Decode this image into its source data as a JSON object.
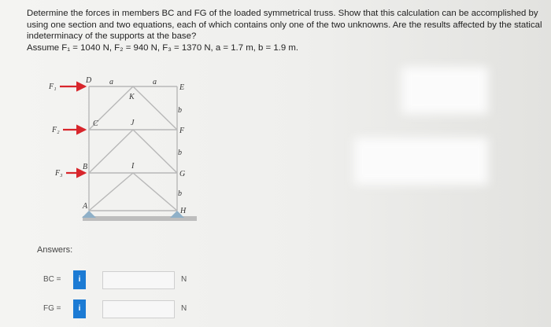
{
  "problem": {
    "text": "Determine the forces in members BC and FG of the loaded symmetrical truss. Show that this calculation can be accomplished by using one section and two equations, each of which contains only one of the two unknowns. Are the results affected by the statical indeterminacy of the supports at the base?",
    "given": "Assume F₁ = 1040 N, F₂ = 940 N, F₃ = 1370 N, a = 1.7 m, b = 1.9 m."
  },
  "figure": {
    "forces": [
      "F₁",
      "F₂",
      "F₃"
    ],
    "nodes": [
      "D",
      "C",
      "B",
      "A",
      "E",
      "F",
      "G",
      "H",
      "K",
      "J",
      "I"
    ],
    "dims": [
      "a",
      "a",
      "b",
      "b",
      "b"
    ]
  },
  "answers": {
    "title": "Answers:",
    "rows": [
      {
        "label": "BC =",
        "info": "i",
        "unit": "N"
      },
      {
        "label": "FG =",
        "info": "i",
        "unit": "N"
      }
    ]
  }
}
